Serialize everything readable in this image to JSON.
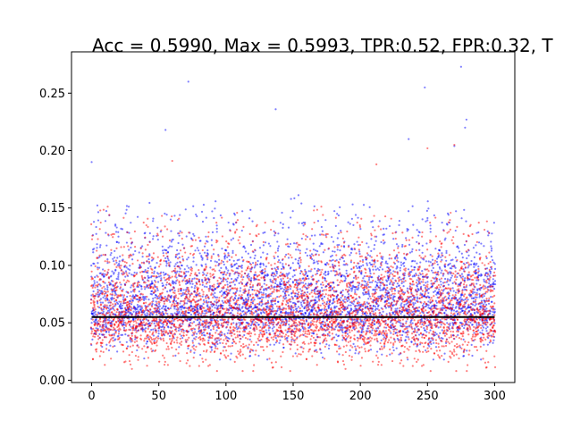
{
  "chart_data": {
    "type": "scatter",
    "title": "Acc = 0.5990, Max = 0.5993, TPR:0.52, FPR:0.32, T",
    "xlabel": "",
    "ylabel": "",
    "xlim": [
      -15,
      315
    ],
    "ylim": [
      -0.002,
      0.286
    ],
    "x_ticks": [
      0,
      50,
      100,
      150,
      200,
      250,
      300
    ],
    "y_ticks": [
      0.0,
      0.05,
      0.1,
      0.15,
      0.2,
      0.25
    ],
    "y_tick_labels": [
      "0.00",
      "0.05",
      "0.10",
      "0.15",
      "0.20",
      "0.25"
    ],
    "grid": false,
    "legend": "none",
    "series": [
      {
        "color": "#0000ff",
        "opacity": 0.5,
        "x_range": [
          0,
          300
        ],
        "points_per_x": 13,
        "typical_range": [
          0.03,
          0.12
        ],
        "center": 0.065,
        "outliers": [
          [
            0,
            0.19
          ],
          [
            72,
            0.26
          ],
          [
            55,
            0.218
          ],
          [
            137,
            0.236
          ],
          [
            248,
            0.255
          ],
          [
            275,
            0.273
          ],
          [
            279,
            0.227
          ],
          [
            236,
            0.21
          ],
          [
            270,
            0.204
          ],
          [
            278,
            0.22
          ]
        ]
      },
      {
        "color": "#ff0000",
        "opacity": 0.5,
        "x_range": [
          0,
          300
        ],
        "points_per_x": 13,
        "typical_range": [
          0.02,
          0.11
        ],
        "center": 0.055,
        "outliers": [
          [
            60,
            0.191
          ],
          [
            212,
            0.188
          ],
          [
            250,
            0.202
          ],
          [
            270,
            0.205
          ]
        ]
      }
    ],
    "threshold_line": {
      "y": 0.055,
      "color": "#000000"
    }
  }
}
